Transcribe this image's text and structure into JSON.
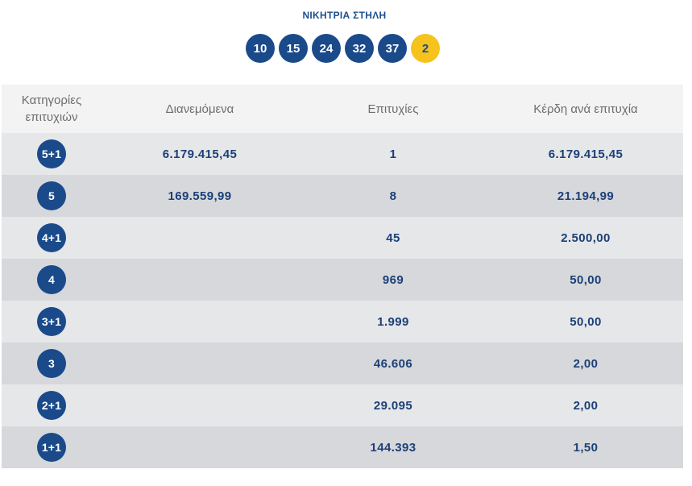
{
  "winning_column": {
    "title": "ΝΙΚΗΤΡΙΑ ΣΤΗΛΗ",
    "numbers": [
      "10",
      "15",
      "24",
      "32",
      "37"
    ],
    "bonus": "2"
  },
  "results": {
    "headers": {
      "category": "Κατηγορίες επιτυχιών",
      "distributed": "Διανεμόμενα",
      "winners": "Επιτυχίες",
      "prize": "Κέρδη ανά επιτυχία"
    },
    "rows": [
      {
        "category": "5+1",
        "distributed": "6.179.415,45",
        "winners": "1",
        "prize": "6.179.415,45"
      },
      {
        "category": "5",
        "distributed": "169.559,99",
        "winners": "8",
        "prize": "21.194,99"
      },
      {
        "category": "4+1",
        "distributed": "",
        "winners": "45",
        "prize": "2.500,00"
      },
      {
        "category": "4",
        "distributed": "",
        "winners": "969",
        "prize": "50,00"
      },
      {
        "category": "3+1",
        "distributed": "",
        "winners": "1.999",
        "prize": "50,00"
      },
      {
        "category": "3",
        "distributed": "",
        "winners": "46.606",
        "prize": "2,00"
      },
      {
        "category": "2+1",
        "distributed": "",
        "winners": "29.095",
        "prize": "2,00"
      },
      {
        "category": "1+1",
        "distributed": "",
        "winners": "144.393",
        "prize": "1,50"
      }
    ]
  },
  "colors": {
    "primary_blue": "#1a4a8a",
    "bonus_yellow": "#f6c21c",
    "value_text": "#1c3f77",
    "header_bg": "#f3f3f3",
    "row_light": "#e6e7e9",
    "row_dark": "#d6d8db"
  }
}
